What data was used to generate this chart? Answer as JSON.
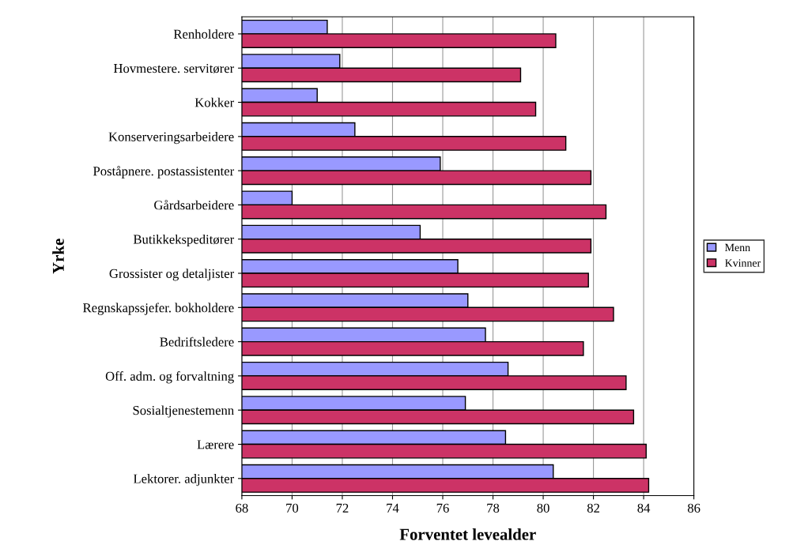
{
  "chart_data": {
    "type": "bar",
    "orientation": "horizontal",
    "xlabel": "Forventet levealder",
    "ylabel": "Yrke",
    "categories": [
      "Renholdere",
      "Hovmestere. servitører",
      "Kokker",
      "Konserveringsarbeidere",
      "Poståpnere. postassistenter",
      "Gårdsarbeidere",
      "Butikkekspeditører",
      "Grossister og detaljister",
      "Regnskapssjefer. bokholdere",
      "Bedriftsledere",
      "Off. adm. og forvaltning",
      "Sosialtjenestemenn",
      "Lærere",
      "Lektorer. adjunkter"
    ],
    "series": [
      {
        "name": "Menn",
        "color": "#9999ff",
        "values": [
          71.4,
          71.9,
          71.0,
          72.5,
          75.9,
          70.0,
          75.1,
          76.6,
          77.0,
          77.7,
          78.6,
          76.9,
          78.5,
          80.4
        ]
      },
      {
        "name": "Kvinner",
        "color": "#cc3366",
        "values": [
          80.5,
          79.1,
          79.7,
          80.9,
          81.9,
          82.5,
          81.9,
          81.8,
          82.8,
          81.6,
          83.3,
          83.6,
          84.1,
          84.2
        ]
      }
    ],
    "xlim": [
      68,
      86
    ],
    "xticks": [
      68,
      70,
      72,
      74,
      76,
      78,
      80,
      82,
      84,
      86
    ],
    "grid": "x",
    "legend": "right"
  }
}
